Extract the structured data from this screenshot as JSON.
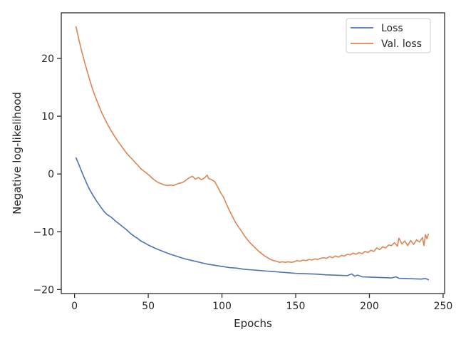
{
  "chart_data": {
    "type": "line",
    "title": "",
    "xlabel": "Epochs",
    "ylabel": "Negative log-likelihood",
    "xlim": [
      -9,
      251
    ],
    "ylim": [
      -20.7,
      27.9
    ],
    "xticks": [
      0,
      50,
      100,
      150,
      200,
      250
    ],
    "yticks": [
      -20,
      -10,
      0,
      10,
      20
    ],
    "grid": false,
    "legend_position": "top-right",
    "series": [
      {
        "name": "Loss",
        "color": "#4c72b0",
        "points": [
          [
            1,
            2.8
          ],
          [
            3,
            1.6
          ],
          [
            5,
            0.3
          ],
          [
            8,
            -1.5
          ],
          [
            10,
            -2.6
          ],
          [
            13,
            -3.9
          ],
          [
            15,
            -4.7
          ],
          [
            18,
            -5.8
          ],
          [
            20,
            -6.5
          ],
          [
            22,
            -7.0
          ],
          [
            25,
            -7.5
          ],
          [
            28,
            -8.2
          ],
          [
            30,
            -8.6
          ],
          [
            33,
            -9.2
          ],
          [
            35,
            -9.6
          ],
          [
            38,
            -10.3
          ],
          [
            40,
            -10.7
          ],
          [
            43,
            -11.2
          ],
          [
            45,
            -11.6
          ],
          [
            48,
            -12.0
          ],
          [
            50,
            -12.3
          ],
          [
            55,
            -12.9
          ],
          [
            60,
            -13.4
          ],
          [
            65,
            -13.9
          ],
          [
            70,
            -14.3
          ],
          [
            75,
            -14.7
          ],
          [
            80,
            -15.0
          ],
          [
            85,
            -15.3
          ],
          [
            90,
            -15.6
          ],
          [
            95,
            -15.8
          ],
          [
            100,
            -16.0
          ],
          [
            105,
            -16.2
          ],
          [
            110,
            -16.3
          ],
          [
            115,
            -16.5
          ],
          [
            120,
            -16.6
          ],
          [
            125,
            -16.7
          ],
          [
            130,
            -16.8
          ],
          [
            135,
            -16.9
          ],
          [
            140,
            -17.0
          ],
          [
            145,
            -17.1
          ],
          [
            150,
            -17.2
          ],
          [
            155,
            -17.25
          ],
          [
            160,
            -17.3
          ],
          [
            165,
            -17.35
          ],
          [
            170,
            -17.45
          ],
          [
            175,
            -17.5
          ],
          [
            180,
            -17.55
          ],
          [
            185,
            -17.6
          ],
          [
            188,
            -17.3
          ],
          [
            190,
            -17.7
          ],
          [
            192,
            -17.5
          ],
          [
            195,
            -17.8
          ],
          [
            200,
            -17.85
          ],
          [
            205,
            -17.9
          ],
          [
            210,
            -17.95
          ],
          [
            215,
            -18.0
          ],
          [
            218,
            -17.8
          ],
          [
            220,
            -18.05
          ],
          [
            225,
            -18.1
          ],
          [
            230,
            -18.15
          ],
          [
            235,
            -18.2
          ],
          [
            238,
            -18.1
          ],
          [
            240,
            -18.3
          ]
        ]
      },
      {
        "name": "Val. loss",
        "color": "#dd8452",
        "points": [
          [
            1,
            25.5
          ],
          [
            3,
            23.2
          ],
          [
            5,
            21.1
          ],
          [
            7,
            19.2
          ],
          [
            9,
            17.4
          ],
          [
            11,
            15.7
          ],
          [
            13,
            14.1
          ],
          [
            15,
            12.8
          ],
          [
            17,
            11.5
          ],
          [
            19,
            10.3
          ],
          [
            21,
            9.3
          ],
          [
            23,
            8.3
          ],
          [
            25,
            7.4
          ],
          [
            27,
            6.6
          ],
          [
            29,
            5.8
          ],
          [
            31,
            5.1
          ],
          [
            33,
            4.4
          ],
          [
            35,
            3.7
          ],
          [
            37,
            3.1
          ],
          [
            39,
            2.6
          ],
          [
            41,
            2.0
          ],
          [
            43,
            1.5
          ],
          [
            45,
            0.9
          ],
          [
            47,
            0.5
          ],
          [
            49,
            0.1
          ],
          [
            51,
            -0.3
          ],
          [
            53,
            -0.8
          ],
          [
            55,
            -1.2
          ],
          [
            57,
            -1.5
          ],
          [
            59,
            -1.7
          ],
          [
            61,
            -1.9
          ],
          [
            63,
            -2.0
          ],
          [
            65,
            -1.9
          ],
          [
            67,
            -2.0
          ],
          [
            69,
            -1.8
          ],
          [
            71,
            -1.6
          ],
          [
            73,
            -1.5
          ],
          [
            75,
            -1.2
          ],
          [
            77,
            -0.8
          ],
          [
            79,
            -0.5
          ],
          [
            80,
            -0.4
          ],
          [
            82,
            -0.9
          ],
          [
            84,
            -0.6
          ],
          [
            86,
            -1.0
          ],
          [
            88,
            -0.7
          ],
          [
            90,
            -0.2
          ],
          [
            91,
            -0.8
          ],
          [
            93,
            -1.0
          ],
          [
            95,
            -1.3
          ],
          [
            97,
            -2.2
          ],
          [
            99,
            -3.2
          ],
          [
            101,
            -4.0
          ],
          [
            103,
            -5.2
          ],
          [
            105,
            -6.3
          ],
          [
            107,
            -7.3
          ],
          [
            109,
            -8.3
          ],
          [
            111,
            -9.1
          ],
          [
            113,
            -9.8
          ],
          [
            115,
            -10.6
          ],
          [
            117,
            -11.3
          ],
          [
            119,
            -11.9
          ],
          [
            121,
            -12.4
          ],
          [
            123,
            -12.9
          ],
          [
            125,
            -13.4
          ],
          [
            127,
            -13.8
          ],
          [
            129,
            -14.2
          ],
          [
            131,
            -14.5
          ],
          [
            133,
            -14.8
          ],
          [
            135,
            -15.0
          ],
          [
            137,
            -15.1
          ],
          [
            139,
            -15.3
          ],
          [
            141,
            -15.2
          ],
          [
            143,
            -15.3
          ],
          [
            145,
            -15.2
          ],
          [
            147,
            -15.3
          ],
          [
            149,
            -15.2
          ],
          [
            151,
            -15.0
          ],
          [
            153,
            -15.1
          ],
          [
            155,
            -14.9
          ],
          [
            157,
            -15.0
          ],
          [
            159,
            -14.8
          ],
          [
            161,
            -14.9
          ],
          [
            163,
            -14.7
          ],
          [
            165,
            -14.8
          ],
          [
            167,
            -14.6
          ],
          [
            169,
            -14.5
          ],
          [
            171,
            -14.6
          ],
          [
            173,
            -14.3
          ],
          [
            175,
            -14.5
          ],
          [
            177,
            -14.2
          ],
          [
            179,
            -14.4
          ],
          [
            181,
            -14.1
          ],
          [
            183,
            -14.2
          ],
          [
            185,
            -13.9
          ],
          [
            187,
            -14.0
          ],
          [
            189,
            -13.7
          ],
          [
            191,
            -13.9
          ],
          [
            193,
            -13.6
          ],
          [
            195,
            -13.8
          ],
          [
            197,
            -13.4
          ],
          [
            199,
            -13.6
          ],
          [
            201,
            -13.2
          ],
          [
            203,
            -13.4
          ],
          [
            205,
            -12.8
          ],
          [
            207,
            -13.1
          ],
          [
            209,
            -12.6
          ],
          [
            211,
            -12.8
          ],
          [
            213,
            -12.3
          ],
          [
            215,
            -12.4
          ],
          [
            217,
            -11.9
          ],
          [
            219,
            -12.5
          ],
          [
            220,
            -11.1
          ],
          [
            222,
            -12.1
          ],
          [
            224,
            -11.6
          ],
          [
            226,
            -12.4
          ],
          [
            228,
            -11.5
          ],
          [
            230,
            -12.2
          ],
          [
            232,
            -11.4
          ],
          [
            234,
            -11.8
          ],
          [
            236,
            -11.0
          ],
          [
            237,
            -12.4
          ],
          [
            238,
            -10.5
          ],
          [
            239,
            -11.2
          ],
          [
            240,
            -10.4
          ]
        ]
      }
    ]
  }
}
